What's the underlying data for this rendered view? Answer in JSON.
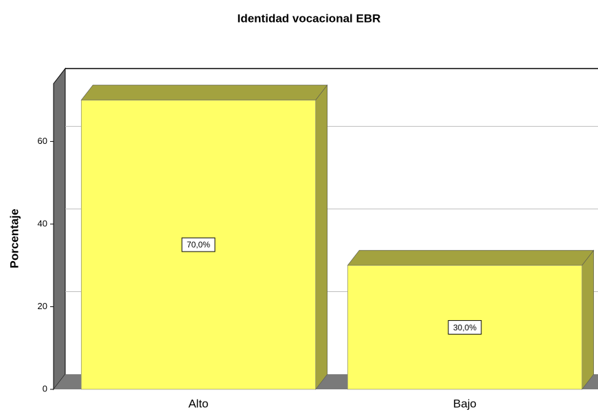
{
  "chart_data": {
    "type": "bar3d",
    "title": "Identidad vocacional EBR",
    "y_label": "Porcentaje",
    "categories": [
      "Alto",
      "Bajo"
    ],
    "values": [
      70,
      30
    ],
    "value_labels": [
      "70,0%",
      "30,0%"
    ],
    "color": "#ffff66",
    "shade_color": "#a3a23f",
    "ylim": [
      0,
      74
    ],
    "yticks": [
      0,
      20,
      40,
      60
    ],
    "grid": true
  }
}
